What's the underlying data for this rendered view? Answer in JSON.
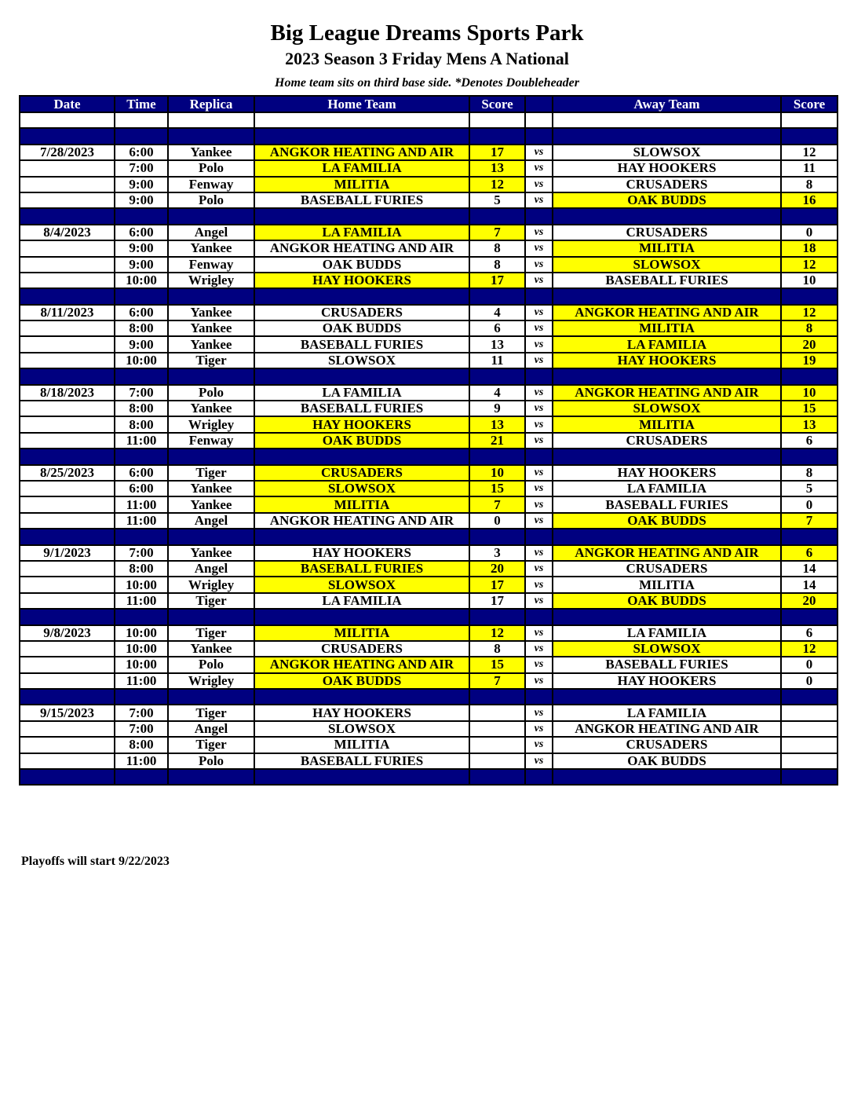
{
  "header": {
    "title": "Big League Dreams Sports Park",
    "subtitle": "2023 Season 3 Friday Mens A National",
    "note": "Home team sits on third base side.  *Denotes Doubleheader"
  },
  "columns": [
    "Date",
    "Time",
    "Replica",
    "Home Team",
    "Score",
    "",
    "Away Team",
    "Score"
  ],
  "highlight_color": "#ffff00",
  "header_color": "#000080",
  "vs_label": "vs",
  "weeks": [
    {
      "date": "7/28/2023",
      "games": [
        {
          "time": "6:00",
          "replica": "Yankee",
          "home": "ANGKOR HEATING AND AIR",
          "home_score": "17",
          "away": "SLOWSOX",
          "away_score": "12",
          "winner": "home"
        },
        {
          "time": "7:00",
          "replica": "Polo",
          "home": "LA FAMILIA",
          "home_score": "13",
          "away": "HAY HOOKERS",
          "away_score": "11",
          "winner": "home"
        },
        {
          "time": "9:00",
          "replica": "Fenway",
          "home": "MILITIA",
          "home_score": "12",
          "away": "CRUSADERS",
          "away_score": "8",
          "winner": "home"
        },
        {
          "time": "9:00",
          "replica": "Polo",
          "home": "BASEBALL FURIES",
          "home_score": "5",
          "away": "OAK BUDDS",
          "away_score": "16",
          "winner": "away"
        }
      ]
    },
    {
      "date": "8/4/2023",
      "games": [
        {
          "time": "6:00",
          "replica": "Angel",
          "home": "LA FAMILIA",
          "home_score": "7",
          "away": "CRUSADERS",
          "away_score": "0",
          "winner": "home"
        },
        {
          "time": "9:00",
          "replica": "Yankee",
          "home": "ANGKOR HEATING AND AIR",
          "home_score": "8",
          "away": "MILITIA",
          "away_score": "18",
          "winner": "away"
        },
        {
          "time": "9:00",
          "replica": "Fenway",
          "home": "OAK BUDDS",
          "home_score": "8",
          "away": "SLOWSOX",
          "away_score": "12",
          "winner": "away"
        },
        {
          "time": "10:00",
          "replica": "Wrigley",
          "home": "HAY HOOKERS",
          "home_score": "17",
          "away": "BASEBALL FURIES",
          "away_score": "10",
          "winner": "home"
        }
      ]
    },
    {
      "date": "8/11/2023",
      "games": [
        {
          "time": "6:00",
          "replica": "Yankee",
          "home": "CRUSADERS",
          "home_score": "4",
          "away": "ANGKOR HEATING AND AIR",
          "away_score": "12",
          "winner": "away"
        },
        {
          "time": "8:00",
          "replica": "Yankee",
          "home": "OAK BUDDS",
          "home_score": "6",
          "away": "MILITIA",
          "away_score": "8",
          "winner": "away"
        },
        {
          "time": "9:00",
          "replica": "Yankee",
          "home": "BASEBALL FURIES",
          "home_score": "13",
          "away": "LA FAMILIA",
          "away_score": "20",
          "winner": "away"
        },
        {
          "time": "10:00",
          "replica": "Tiger",
          "home": "SLOWSOX",
          "home_score": "11",
          "away": "HAY HOOKERS",
          "away_score": "19",
          "winner": "away"
        }
      ]
    },
    {
      "date": "8/18/2023",
      "games": [
        {
          "time": "7:00",
          "replica": "Polo",
          "home": "LA FAMILIA",
          "home_score": "4",
          "away": "ANGKOR HEATING AND AIR",
          "away_score": "10",
          "winner": "away"
        },
        {
          "time": "8:00",
          "replica": "Yankee",
          "home": "BASEBALL FURIES",
          "home_score": "9",
          "away": "SLOWSOX",
          "away_score": "15",
          "winner": "away"
        },
        {
          "time": "8:00",
          "replica": "Wrigley",
          "home": "HAY HOOKERS",
          "home_score": "13",
          "away": "MILITIA",
          "away_score": "13",
          "winner": "tie"
        },
        {
          "time": "11:00",
          "replica": "Fenway",
          "home": "OAK BUDDS",
          "home_score": "21",
          "away": "CRUSADERS",
          "away_score": "6",
          "winner": "home"
        }
      ]
    },
    {
      "date": "8/25/2023",
      "games": [
        {
          "time": "6:00",
          "replica": "Tiger",
          "home": "CRUSADERS",
          "home_score": "10",
          "away": "HAY HOOKERS",
          "away_score": "8",
          "winner": "home"
        },
        {
          "time": "6:00",
          "replica": "Yankee",
          "home": "SLOWSOX",
          "home_score": "15",
          "away": "LA FAMILIA",
          "away_score": "5",
          "winner": "home"
        },
        {
          "time": "11:00",
          "replica": "Yankee",
          "home": "MILITIA",
          "home_score": "7",
          "away": "BASEBALL FURIES",
          "away_score": "0",
          "winner": "home"
        },
        {
          "time": "11:00",
          "replica": "Angel",
          "home": "ANGKOR HEATING AND AIR",
          "home_score": "0",
          "away": "OAK BUDDS",
          "away_score": "7",
          "winner": "away"
        }
      ]
    },
    {
      "date": "9/1/2023",
      "games": [
        {
          "time": "7:00",
          "replica": "Yankee",
          "home": "HAY HOOKERS",
          "home_score": "3",
          "away": "ANGKOR HEATING AND AIR",
          "away_score": "6",
          "winner": "away"
        },
        {
          "time": "8:00",
          "replica": "Angel",
          "home": "BASEBALL FURIES",
          "home_score": "20",
          "away": "CRUSADERS",
          "away_score": "14",
          "winner": "home"
        },
        {
          "time": "10:00",
          "replica": "Wrigley",
          "home": "SLOWSOX",
          "home_score": "17",
          "away": "MILITIA",
          "away_score": "14",
          "winner": "home"
        },
        {
          "time": "11:00",
          "replica": "Tiger",
          "home": "LA FAMILIA",
          "home_score": "17",
          "away": "OAK BUDDS",
          "away_score": "20",
          "winner": "away"
        }
      ]
    },
    {
      "date": "9/8/2023",
      "games": [
        {
          "time": "10:00",
          "replica": "Tiger",
          "home": "MILITIA",
          "home_score": "12",
          "away": "LA FAMILIA",
          "away_score": "6",
          "winner": "home"
        },
        {
          "time": "10:00",
          "replica": "Yankee",
          "home": "CRUSADERS",
          "home_score": "8",
          "away": "SLOWSOX",
          "away_score": "12",
          "winner": "away"
        },
        {
          "time": "10:00",
          "replica": "Polo",
          "home": "ANGKOR HEATING AND AIR",
          "home_score": "15",
          "away": "BASEBALL FURIES",
          "away_score": "0",
          "winner": "home"
        },
        {
          "time": "11:00",
          "replica": "Wrigley",
          "home": "OAK BUDDS",
          "home_score": "7",
          "away": "HAY HOOKERS",
          "away_score": "0",
          "winner": "home"
        }
      ]
    },
    {
      "date": "9/15/2023",
      "games": [
        {
          "time": "7:00",
          "replica": "Tiger",
          "home": "HAY HOOKERS",
          "home_score": "",
          "away": "LA FAMILIA",
          "away_score": "",
          "winner": ""
        },
        {
          "time": "7:00",
          "replica": "Angel",
          "home": "SLOWSOX",
          "home_score": "",
          "away": "ANGKOR HEATING AND AIR",
          "away_score": "",
          "winner": ""
        },
        {
          "time": "8:00",
          "replica": "Tiger",
          "home": "MILITIA",
          "home_score": "",
          "away": "CRUSADERS",
          "away_score": "",
          "winner": ""
        },
        {
          "time": "11:00",
          "replica": "Polo",
          "home": "BASEBALL FURIES",
          "home_score": "",
          "away": "OAK BUDDS",
          "away_score": "",
          "winner": ""
        }
      ]
    }
  ],
  "footer": "Playoffs will start 9/22/2023"
}
